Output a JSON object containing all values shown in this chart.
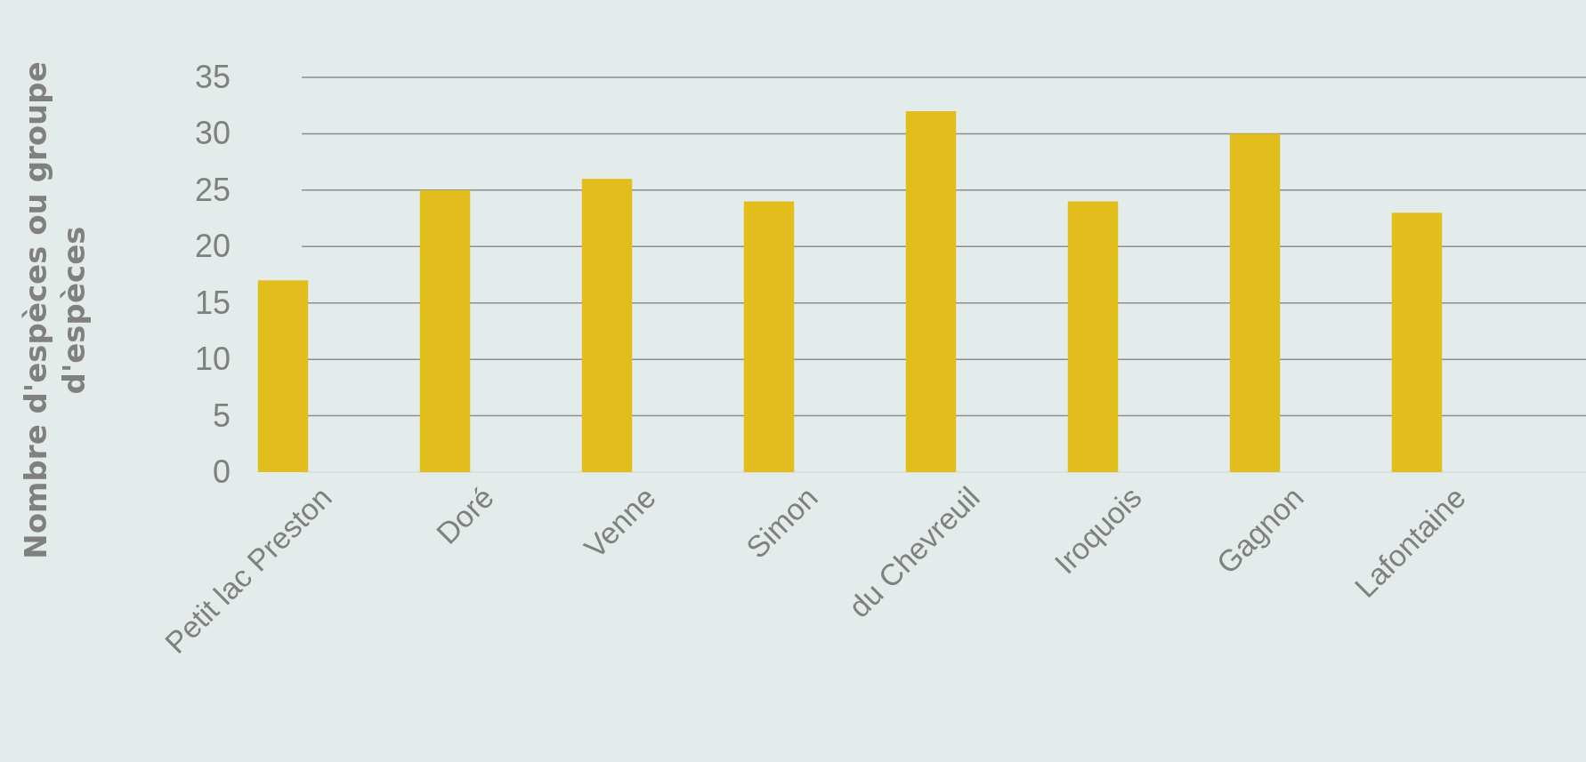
{
  "chart_data": {
    "type": "bar",
    "ylabel": "Nombre d'espèces ou groupe d'espèces",
    "categories": [
      "Petit lac Preston",
      "Doré",
      "Venne",
      "Simon",
      "du Chevreuil",
      "Iroquois",
      "Gagnon",
      "Lafontaine"
    ],
    "values": [
      17,
      25,
      26,
      24,
      32,
      24,
      30,
      23
    ],
    "color": "#e1be1c",
    "ylim": [
      0,
      35
    ],
    "yticks": [
      0,
      5,
      10,
      15,
      20,
      25,
      30,
      35
    ],
    "grid": "y"
  }
}
